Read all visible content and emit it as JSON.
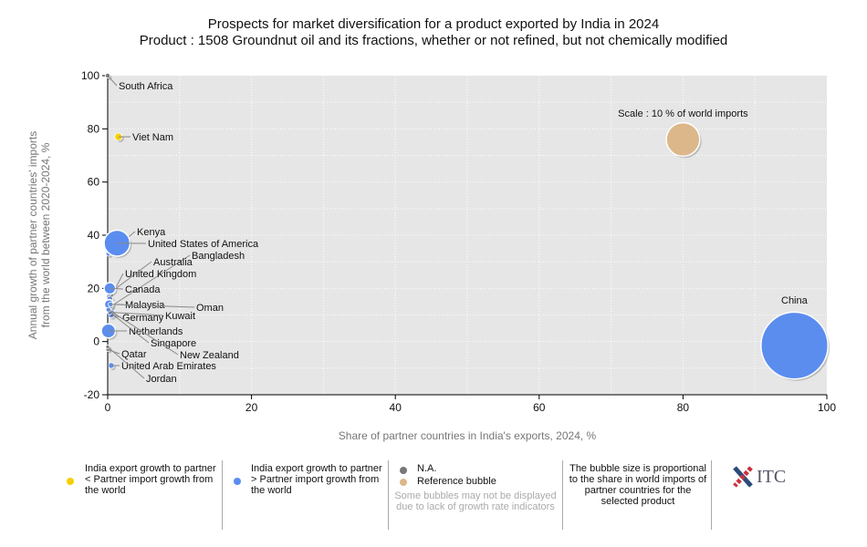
{
  "title": "Prospects for market diversification for a product exported by India in 2024",
  "subtitle": "Product : 1508 Groundnut oil and its fractions, whether or not refined, but not chemically modified",
  "chart_data": {
    "type": "scatter",
    "xlabel": "Share of partner countries in India's exports, 2024, %",
    "ylabel": "Annual growth of partner countries' imports from the world between 2020-2024, %",
    "xlim": [
      0,
      100
    ],
    "ylim": [
      -20,
      100
    ],
    "xticks": [
      "0",
      "20",
      "40",
      "60",
      "80",
      "100"
    ],
    "yticks": [
      "-20",
      "0",
      "20",
      "40",
      "60",
      "80",
      "100"
    ],
    "grid": true,
    "colors": {
      "lower": "#f5d000",
      "higher": "#5b8def",
      "na": "#777777",
      "reference": "#dcb78a"
    },
    "points": [
      {
        "name": "South Africa",
        "x": 0,
        "y": 100,
        "size": 0.2,
        "group": "na"
      },
      {
        "name": "Viet Nam",
        "x": 1.5,
        "y": 77,
        "size": 0.5,
        "group": "lower"
      },
      {
        "name": "Kenya",
        "x": 0.1,
        "y": 33,
        "size": 0.2,
        "group": "higher"
      },
      {
        "name": "United States of America",
        "x": 1.3,
        "y": 37,
        "size": 6,
        "group": "higher"
      },
      {
        "name": "Bangladesh",
        "x": 0.3,
        "y": 13,
        "size": 0.2,
        "group": "higher"
      },
      {
        "name": "Australia",
        "x": 0.2,
        "y": 18,
        "size": 0.2,
        "group": "higher"
      },
      {
        "name": "United Kingdom",
        "x": 0.3,
        "y": 16,
        "size": 0.3,
        "group": "higher"
      },
      {
        "name": "Canada",
        "x": 0.3,
        "y": 20,
        "size": 1.2,
        "group": "higher"
      },
      {
        "name": "Malaysia",
        "x": 0.2,
        "y": 14,
        "size": 0.8,
        "group": "higher"
      },
      {
        "name": "Oman",
        "x": 0.4,
        "y": 14,
        "size": 0.2,
        "group": "higher"
      },
      {
        "name": "Kuwait",
        "x": 0.6,
        "y": 11,
        "size": 0.2,
        "group": "higher"
      },
      {
        "name": "Germany",
        "x": 0.5,
        "y": 10,
        "size": 0.3,
        "group": "higher"
      },
      {
        "name": "Netherlands",
        "x": 0.1,
        "y": 4,
        "size": 1.8,
        "group": "higher"
      },
      {
        "name": "Singapore",
        "x": 0.3,
        "y": 11,
        "size": 0.2,
        "group": "higher"
      },
      {
        "name": "New Zealand",
        "x": 0.1,
        "y": 12,
        "size": 0.2,
        "group": "higher"
      },
      {
        "name": "Qatar",
        "x": 0,
        "y": -3,
        "size": 0.1,
        "group": "na"
      },
      {
        "name": "United Arab Emirates",
        "x": 0.5,
        "y": -9,
        "size": 0.3,
        "group": "higher"
      },
      {
        "name": "Jordan",
        "x": 0,
        "y": -2,
        "size": 0.1,
        "group": "na"
      },
      {
        "name": "China",
        "x": 95.5,
        "y": -1.5,
        "size": 40,
        "group": "higher"
      }
    ],
    "reference": {
      "label": "Scale : 10 % of world imports",
      "x": 80,
      "y": 76,
      "size": 10
    }
  },
  "legend": {
    "lower": "India export growth to partner < Partner import growth from the world",
    "higher": "India export growth to partner > Partner import growth from the world",
    "na": "N.A.",
    "reference": "Reference bubble",
    "note": "Some bubbles may not be displayed due to lack of growth rate indicators",
    "size_note": "The bubble size is proportional to the share in world imports of partner countries for the selected product",
    "logo": "ITC"
  }
}
